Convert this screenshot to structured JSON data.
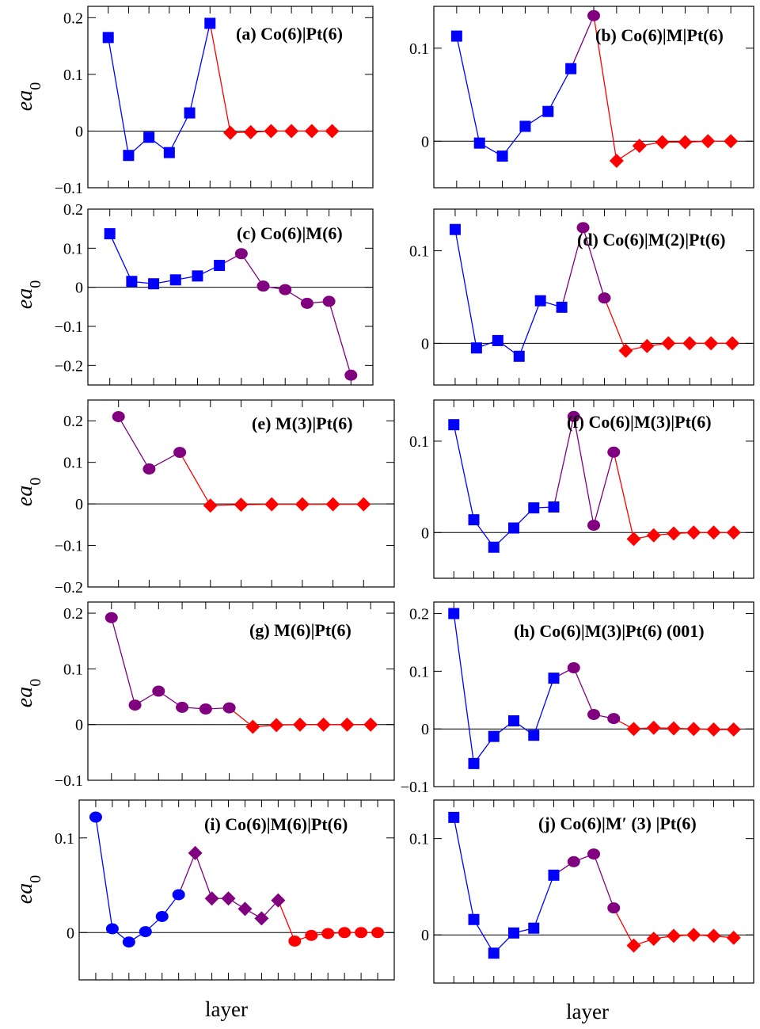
{
  "colors": {
    "co": "#0000ff",
    "m": "#800080",
    "pt": "#ff0000",
    "frame": "#000000",
    "zero_line": "#000000"
  },
  "figure": {
    "xlabel": "layer",
    "ylabel_main": "ea",
    "ylabel_sub": "0"
  },
  "chart_data": [
    {
      "id": "a",
      "type": "scatter-line",
      "title": "(a) Co(6)|Pt(6)",
      "ylim": [
        -0.1,
        0.22
      ],
      "yticks": [
        -0.1,
        0,
        0.1,
        0.2
      ],
      "yticklabels": [
        "−0.1",
        "0",
        "0.1",
        "0.2"
      ],
      "xlim": [
        0,
        14
      ],
      "xtick_count": 13,
      "series": [
        {
          "name": "Co",
          "color": "co",
          "marker": "square",
          "x": [
            1,
            2,
            3,
            4,
            5,
            6
          ],
          "y": [
            0.165,
            -0.043,
            -0.011,
            -0.038,
            0.032,
            0.19
          ]
        },
        {
          "name": "Pt",
          "color": "pt",
          "marker": "diamond",
          "x": [
            7,
            8,
            9,
            10,
            11,
            12
          ],
          "y": [
            -0.003,
            -0.002,
            0.0,
            0.0,
            0.0,
            0.0
          ]
        }
      ]
    },
    {
      "id": "b",
      "type": "scatter-line",
      "title": "(b) Co(6)|M|Pt(6)",
      "ylim": [
        -0.05,
        0.145
      ],
      "yticks": [
        0,
        0.1
      ],
      "yticklabels": [
        "0",
        "0.1"
      ],
      "xlim": [
        0,
        14
      ],
      "xtick_count": 13,
      "series": [
        {
          "name": "Co",
          "color": "co",
          "marker": "square",
          "x": [
            1,
            2,
            3,
            4,
            5,
            6
          ],
          "y": [
            0.113,
            -0.002,
            -0.016,
            0.016,
            0.032,
            0.078
          ]
        },
        {
          "name": "M",
          "color": "m",
          "marker": "circle",
          "x": [
            7
          ],
          "y": [
            0.135
          ]
        },
        {
          "name": "Pt",
          "color": "pt",
          "marker": "diamond",
          "x": [
            8,
            9,
            10,
            11,
            12,
            13
          ],
          "y": [
            -0.021,
            -0.005,
            -0.001,
            -0.001,
            0.0,
            0.0
          ]
        }
      ]
    },
    {
      "id": "c",
      "type": "scatter-line",
      "title": "(c) Co(6)|M(6)",
      "ylim": [
        -0.25,
        0.2
      ],
      "yticks": [
        -0.2,
        -0.1,
        0,
        0.1,
        0.2
      ],
      "yticklabels": [
        "−0.2",
        "−0.1",
        "0",
        "0.1",
        "0.2"
      ],
      "xlim": [
        0,
        13
      ],
      "xtick_count": 12,
      "series": [
        {
          "name": "Co",
          "color": "co",
          "marker": "square",
          "x": [
            1,
            2,
            3,
            4,
            5,
            6
          ],
          "y": [
            0.137,
            0.015,
            0.009,
            0.019,
            0.029,
            0.056
          ]
        },
        {
          "name": "M",
          "color": "m",
          "marker": "circle",
          "x": [
            7,
            8,
            9,
            10,
            11,
            12
          ],
          "y": [
            0.086,
            0.003,
            -0.006,
            -0.041,
            -0.036,
            -0.225
          ]
        }
      ]
    },
    {
      "id": "d",
      "type": "scatter-line",
      "title": "(d) Co(6)|M(2)|Pt(6)",
      "ylim": [
        -0.045,
        0.145
      ],
      "yticks": [
        0,
        0.1
      ],
      "yticklabels": [
        "0",
        "0.1"
      ],
      "xlim": [
        0,
        15
      ],
      "xtick_count": 14,
      "series": [
        {
          "name": "Co",
          "color": "co",
          "marker": "square",
          "x": [
            1,
            2,
            3,
            4,
            5,
            6
          ],
          "y": [
            0.123,
            -0.005,
            0.003,
            -0.014,
            0.046,
            0.039
          ]
        },
        {
          "name": "M",
          "color": "m",
          "marker": "circle",
          "x": [
            7,
            8
          ],
          "y": [
            0.125,
            0.049
          ]
        },
        {
          "name": "Pt",
          "color": "pt",
          "marker": "diamond",
          "x": [
            9,
            10,
            11,
            12,
            13,
            14
          ],
          "y": [
            -0.008,
            -0.003,
            0.0,
            0.0,
            0.0,
            0.0
          ]
        }
      ]
    },
    {
      "id": "e",
      "type": "scatter-line",
      "title": "(e) M(3)|Pt(6)",
      "ylim": [
        -0.2,
        0.25
      ],
      "yticks": [
        -0.2,
        -0.1,
        0,
        0.1,
        0.2
      ],
      "yticklabels": [
        "−0.2",
        "−0.1",
        "0",
        "0.1",
        "0.2"
      ],
      "xlim": [
        0,
        10
      ],
      "xtick_count": 9,
      "series": [
        {
          "name": "M",
          "color": "m",
          "marker": "circle",
          "x": [
            1,
            2,
            3
          ],
          "y": [
            0.21,
            0.084,
            0.124
          ]
        },
        {
          "name": "Pt",
          "color": "pt",
          "marker": "diamond",
          "x": [
            4,
            5,
            6,
            7,
            8,
            9
          ],
          "y": [
            -0.004,
            -0.002,
            -0.001,
            -0.001,
            -0.001,
            -0.001
          ]
        }
      ]
    },
    {
      "id": "f",
      "type": "scatter-line",
      "title": "(f) Co(6)|M(3)|Pt(6)",
      "ylim": [
        -0.05,
        0.145
      ],
      "yticks": [
        0,
        0.1
      ],
      "yticklabels": [
        "0",
        "0.1"
      ],
      "xlim": [
        0,
        16
      ],
      "xtick_count": 15,
      "series": [
        {
          "name": "Co",
          "color": "co",
          "marker": "square",
          "x": [
            1,
            2,
            3,
            4,
            5,
            6
          ],
          "y": [
            0.118,
            0.014,
            -0.016,
            0.005,
            0.027,
            0.028
          ]
        },
        {
          "name": "M",
          "color": "m",
          "marker": "circle",
          "x": [
            7,
            8,
            9
          ],
          "y": [
            0.127,
            0.008,
            0.088
          ]
        },
        {
          "name": "Pt",
          "color": "pt",
          "marker": "diamond",
          "x": [
            10,
            11,
            12,
            13,
            14,
            15
          ],
          "y": [
            -0.007,
            -0.003,
            -0.001,
            0.0,
            0.0,
            0.0
          ]
        }
      ]
    },
    {
      "id": "g",
      "type": "scatter-line",
      "title": "(g) M(6)|Pt(6)",
      "ylim": [
        -0.1,
        0.22
      ],
      "yticks": [
        -0.1,
        0,
        0.1,
        0.2
      ],
      "yticklabels": [
        "−0.1",
        "0",
        "0.1",
        "0.2"
      ],
      "xlim": [
        0,
        13
      ],
      "xtick_count": 12,
      "series": [
        {
          "name": "M",
          "color": "m",
          "marker": "circle",
          "x": [
            1,
            2,
            3,
            4,
            5,
            6
          ],
          "y": [
            0.192,
            0.035,
            0.06,
            0.031,
            0.028,
            0.03
          ]
        },
        {
          "name": "Pt",
          "color": "pt",
          "marker": "diamond",
          "x": [
            7,
            8,
            9,
            10,
            11,
            12
          ],
          "y": [
            -0.004,
            -0.001,
            0.0,
            0.0,
            0.0,
            0.0
          ]
        }
      ]
    },
    {
      "id": "h",
      "type": "scatter-line",
      "title": "(h) Co(6)|M(3)|Pt(6) (001)",
      "ylim": [
        -0.1,
        0.22
      ],
      "yticks": [
        -0.1,
        0,
        0.1,
        0.2
      ],
      "yticklabels": [
        "−0.1",
        "0",
        "0.1",
        "0.2"
      ],
      "xlim": [
        0,
        16
      ],
      "xtick_count": 15,
      "series": [
        {
          "name": "Co",
          "color": "co",
          "marker": "square",
          "x": [
            1,
            2,
            3,
            4,
            5,
            6
          ],
          "y": [
            0.2,
            -0.06,
            -0.013,
            0.014,
            -0.011,
            0.088
          ]
        },
        {
          "name": "M",
          "color": "m",
          "marker": "circle",
          "x": [
            7,
            8,
            9
          ],
          "y": [
            0.106,
            0.025,
            0.018
          ]
        },
        {
          "name": "Pt",
          "color": "pt",
          "marker": "diamond",
          "x": [
            10,
            11,
            12,
            13,
            14,
            15
          ],
          "y": [
            0.0,
            0.002,
            0.001,
            0.0,
            -0.001,
            -0.001
          ]
        }
      ]
    },
    {
      "id": "i",
      "type": "scatter-line",
      "title": "(i) Co(6)|M(6)|Pt(6)",
      "ylim": [
        -0.05,
        0.14
      ],
      "yticks": [
        0,
        0.1
      ],
      "yticklabels": [
        "0",
        "0.1"
      ],
      "xlim": [
        0,
        19
      ],
      "xtick_count": 18,
      "series": [
        {
          "name": "Co",
          "color": "co",
          "marker": "circle",
          "x": [
            1,
            2,
            3,
            4,
            5,
            6
          ],
          "y": [
            0.122,
            0.004,
            -0.01,
            0.001,
            0.017,
            0.04
          ]
        },
        {
          "name": "M",
          "color": "m",
          "marker": "diamond",
          "x": [
            7,
            8,
            9,
            10,
            11,
            12
          ],
          "y": [
            0.084,
            0.036,
            0.036,
            0.025,
            0.015,
            0.034
          ]
        },
        {
          "name": "Pt",
          "color": "pt",
          "marker": "circle",
          "x": [
            13,
            14,
            15,
            16,
            17,
            18
          ],
          "y": [
            -0.009,
            -0.003,
            -0.001,
            0.0,
            0.0,
            0.0
          ]
        }
      ]
    },
    {
      "id": "j",
      "type": "scatter-line",
      "title": "(j) Co(6)|M′ (3) |Pt(6)",
      "ylim": [
        -0.05,
        0.14
      ],
      "yticks": [
        0,
        0.1
      ],
      "yticklabels": [
        "0",
        "0.1"
      ],
      "xlim": [
        0,
        16
      ],
      "xtick_count": 15,
      "series": [
        {
          "name": "Co",
          "color": "co",
          "marker": "square",
          "x": [
            1,
            2,
            3,
            4,
            5,
            6
          ],
          "y": [
            0.122,
            0.016,
            -0.019,
            0.002,
            0.007,
            0.062
          ]
        },
        {
          "name": "M",
          "color": "m",
          "marker": "circle",
          "x": [
            7,
            8,
            9
          ],
          "y": [
            0.076,
            0.084,
            0.028
          ]
        },
        {
          "name": "Pt",
          "color": "pt",
          "marker": "diamond",
          "x": [
            10,
            11,
            12,
            13,
            14,
            15
          ],
          "y": [
            -0.011,
            -0.004,
            -0.001,
            0.0,
            -0.001,
            -0.003
          ]
        }
      ]
    }
  ]
}
